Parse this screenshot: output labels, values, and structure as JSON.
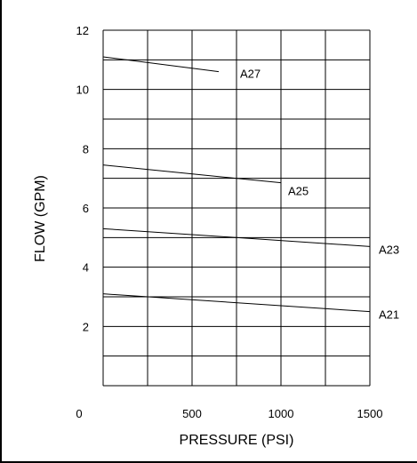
{
  "chart_data": {
    "type": "line",
    "title": "",
    "xlabel": "PRESSURE (PSI)",
    "ylabel": "FLOW (GPM)",
    "xlim": [
      0,
      1500
    ],
    "ylim": [
      0,
      12
    ],
    "x_ticks": [
      0,
      500,
      1000,
      1500
    ],
    "y_ticks": [
      2,
      4,
      6,
      8,
      10,
      12
    ],
    "x_tick_labels": [
      "0",
      "500",
      "1000",
      "1500"
    ],
    "y_tick_labels": [
      "2",
      "4",
      "6",
      "8",
      "10",
      "12"
    ],
    "grid": true,
    "legend": "none",
    "series": [
      {
        "name": "A27",
        "x": [
          0,
          650
        ],
        "values": [
          11.1,
          10.6
        ]
      },
      {
        "name": "A25",
        "x": [
          0,
          1000
        ],
        "values": [
          7.45,
          6.85
        ]
      },
      {
        "name": "A23",
        "x": [
          0,
          1500
        ],
        "values": [
          5.3,
          4.7
        ]
      },
      {
        "name": "A21",
        "x": [
          0,
          1500
        ],
        "values": [
          3.1,
          2.5
        ]
      }
    ]
  }
}
